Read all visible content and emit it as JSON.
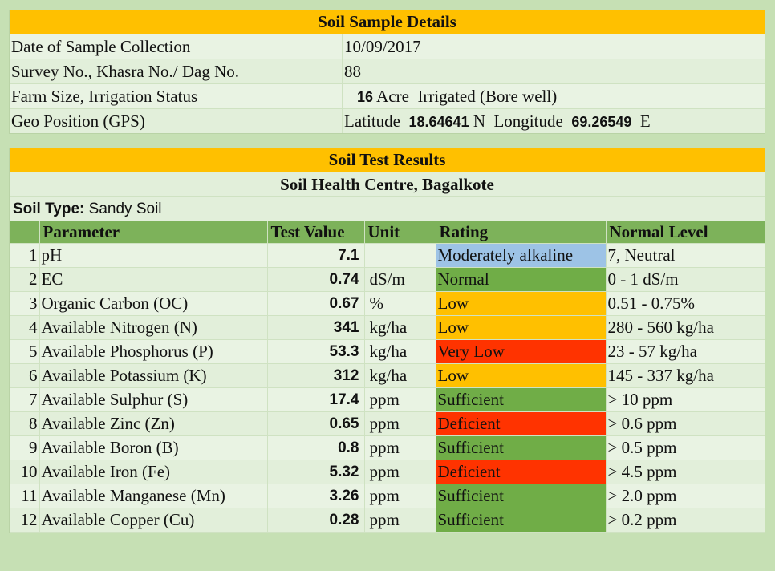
{
  "colors": {
    "header": "#ffc000",
    "column_header": "#7db25a",
    "rating_moderately_alkaline": "#9dc3e6",
    "rating_normal": "#70ad47",
    "rating_low": "#ffc000",
    "rating_very_low": "#ff3300",
    "rating_sufficient": "#70ad47",
    "rating_deficient": "#ff3300"
  },
  "sample_details": {
    "title": "Soil Sample Details",
    "date_label": "Date of Sample Collection",
    "date_value": "10/09/2017",
    "survey_label": "Survey No., Khasra No./ Dag No.",
    "survey_value": "88",
    "farm_label": "Farm Size, Irrigation Status",
    "farm_size": "16",
    "farm_unit": "Acre",
    "irrigation": "Irrigated (Bore well)",
    "gps_label": "Geo Position (GPS)",
    "lat_label": "Latitude",
    "lat_value": "18.64641",
    "lat_dir": "N",
    "lon_label": "Longitude",
    "lon_value": "69.26549",
    "lon_dir": "E"
  },
  "results": {
    "title": "Soil Test Results",
    "centre": "Soil Health Centre, Bagalkote",
    "soil_type_label": "Soil Type:",
    "soil_type_value": "Sandy Soil",
    "columns": {
      "parameter": "Parameter",
      "test_value": "Test Value",
      "unit": "Unit",
      "rating": "Rating",
      "normal_level": "Normal Level"
    },
    "rows": [
      {
        "no": "1",
        "parameter": "pH",
        "value": "7.1",
        "unit": "",
        "rating": "Moderately alkaline",
        "rating_color": "#9dc3e6",
        "normal": "7,  Neutral"
      },
      {
        "no": "2",
        "parameter": "EC",
        "value": "0.74",
        "unit": "dS/m",
        "rating": "Normal",
        "rating_color": "#70ad47",
        "normal": "0 - 1 dS/m"
      },
      {
        "no": "3",
        "parameter": "Organic Carbon (OC)",
        "value": "0.67",
        "unit": "%",
        "rating": "Low",
        "rating_color": "#ffc000",
        "normal": "0.51 - 0.75%"
      },
      {
        "no": "4",
        "parameter": "Available Nitrogen (N)",
        "value": "341",
        "unit": "kg/ha",
        "rating": "Low",
        "rating_color": "#ffc000",
        "normal": "280 - 560 kg/ha"
      },
      {
        "no": "5",
        "parameter": "Available Phosphorus (P)",
        "value": "53.3",
        "unit": "kg/ha",
        "rating": "Very Low",
        "rating_color": "#ff3300",
        "normal": "23 - 57 kg/ha"
      },
      {
        "no": "6",
        "parameter": "Available Potassium (K)",
        "value": "312",
        "unit": "kg/ha",
        "rating": "Low",
        "rating_color": "#ffc000",
        "normal": "145 - 337 kg/ha"
      },
      {
        "no": "7",
        "parameter": "Available Sulphur (S)",
        "value": "17.4",
        "unit": "ppm",
        "rating": "Sufficient",
        "rating_color": "#70ad47",
        "normal": "> 10 ppm"
      },
      {
        "no": "8",
        "parameter": "Available Zinc (Zn)",
        "value": "0.65",
        "unit": "ppm",
        "rating": "Deficient",
        "rating_color": "#ff3300",
        "normal": "> 0.6 ppm"
      },
      {
        "no": "9",
        "parameter": "Available Boron (B)",
        "value": "0.8",
        "unit": "ppm",
        "rating": "Sufficient",
        "rating_color": "#70ad47",
        "normal": "> 0.5 ppm"
      },
      {
        "no": "10",
        "parameter": "Available Iron (Fe)",
        "value": "5.32",
        "unit": "ppm",
        "rating": "Deficient",
        "rating_color": "#ff3300",
        "normal": "> 4.5 ppm"
      },
      {
        "no": "11",
        "parameter": "Available Manganese (Mn)",
        "value": "3.26",
        "unit": "ppm",
        "rating": "Sufficient",
        "rating_color": "#70ad47",
        "normal": "> 2.0 ppm"
      },
      {
        "no": "12",
        "parameter": "Available Copper (Cu)",
        "value": "0.28",
        "unit": "ppm",
        "rating": "Sufficient",
        "rating_color": "#70ad47",
        "normal": "> 0.2 ppm"
      }
    ]
  }
}
